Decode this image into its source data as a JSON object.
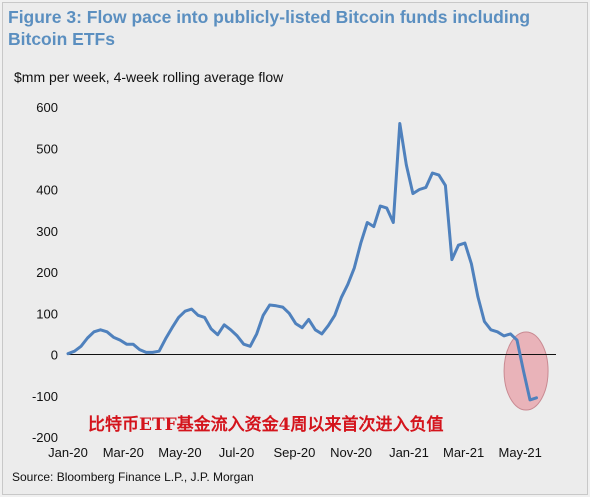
{
  "title": "Figure 3: Flow pace into publicly-listed Bitcoin funds including Bitcoin ETFs",
  "subtitle": "$mm per week, 4-week rolling average flow",
  "source": "Source: Bloomberg Finance L.P., J.P. Morgan",
  "annotation": "比特币ETF基金流入资金4周以来首次进入负值",
  "colors": {
    "line": "#4f81bd",
    "title": "#5b8fc0",
    "highlight": "#e8a0a8",
    "annotation": "#d4141c"
  },
  "chart_data": {
    "type": "line",
    "title": "Figure 3: Flow pace into publicly-listed Bitcoin funds including Bitcoin ETFs",
    "ylabel": "$mm per week, 4-week rolling average flow",
    "ylim": [
      -200,
      600
    ],
    "yticks": [
      600,
      500,
      400,
      300,
      200,
      100,
      0,
      -100,
      -200
    ],
    "xlim": [
      0,
      75
    ],
    "xticks": [
      {
        "label": "Jan-20",
        "x": 0.0
      },
      {
        "label": "Mar-20",
        "x": 8.5
      },
      {
        "label": "May-20",
        "x": 17.2
      },
      {
        "label": "Jul-20",
        "x": 25.9
      },
      {
        "label": "Sep-20",
        "x": 34.8
      },
      {
        "label": "Nov-20",
        "x": 43.5
      },
      {
        "label": "Jan-21",
        "x": 52.4
      },
      {
        "label": "Mar-21",
        "x": 60.8
      },
      {
        "label": "May-21",
        "x": 69.5
      }
    ],
    "x": [
      0,
      1,
      2,
      3,
      4,
      5,
      6,
      7,
      8,
      9,
      10,
      11,
      12,
      13,
      14,
      15,
      16,
      17,
      18,
      19,
      20,
      21,
      22,
      23,
      24,
      25,
      26,
      27,
      28,
      29,
      30,
      31,
      32,
      33,
      34,
      35,
      36,
      37,
      38,
      39,
      40,
      41,
      42,
      43,
      44,
      45,
      46,
      47,
      48,
      49,
      50,
      51,
      52,
      53,
      54,
      55,
      56,
      57,
      58,
      59,
      60,
      61,
      62,
      63,
      64,
      65,
      66,
      67,
      68,
      69,
      70,
      71,
      72
    ],
    "values": [
      2,
      8,
      20,
      40,
      55,
      60,
      55,
      42,
      35,
      25,
      25,
      12,
      5,
      5,
      8,
      38,
      65,
      90,
      105,
      110,
      95,
      90,
      62,
      48,
      72,
      60,
      45,
      25,
      20,
      50,
      95,
      120,
      118,
      115,
      100,
      75,
      65,
      85,
      60,
      50,
      70,
      95,
      138,
      170,
      210,
      270,
      320,
      310,
      360,
      355,
      320,
      560,
      460,
      390,
      400,
      405,
      440,
      435,
      410,
      230,
      265,
      270,
      220,
      140,
      80,
      60,
      55,
      45,
      50,
      35,
      -40,
      -110,
      -105
    ]
  }
}
